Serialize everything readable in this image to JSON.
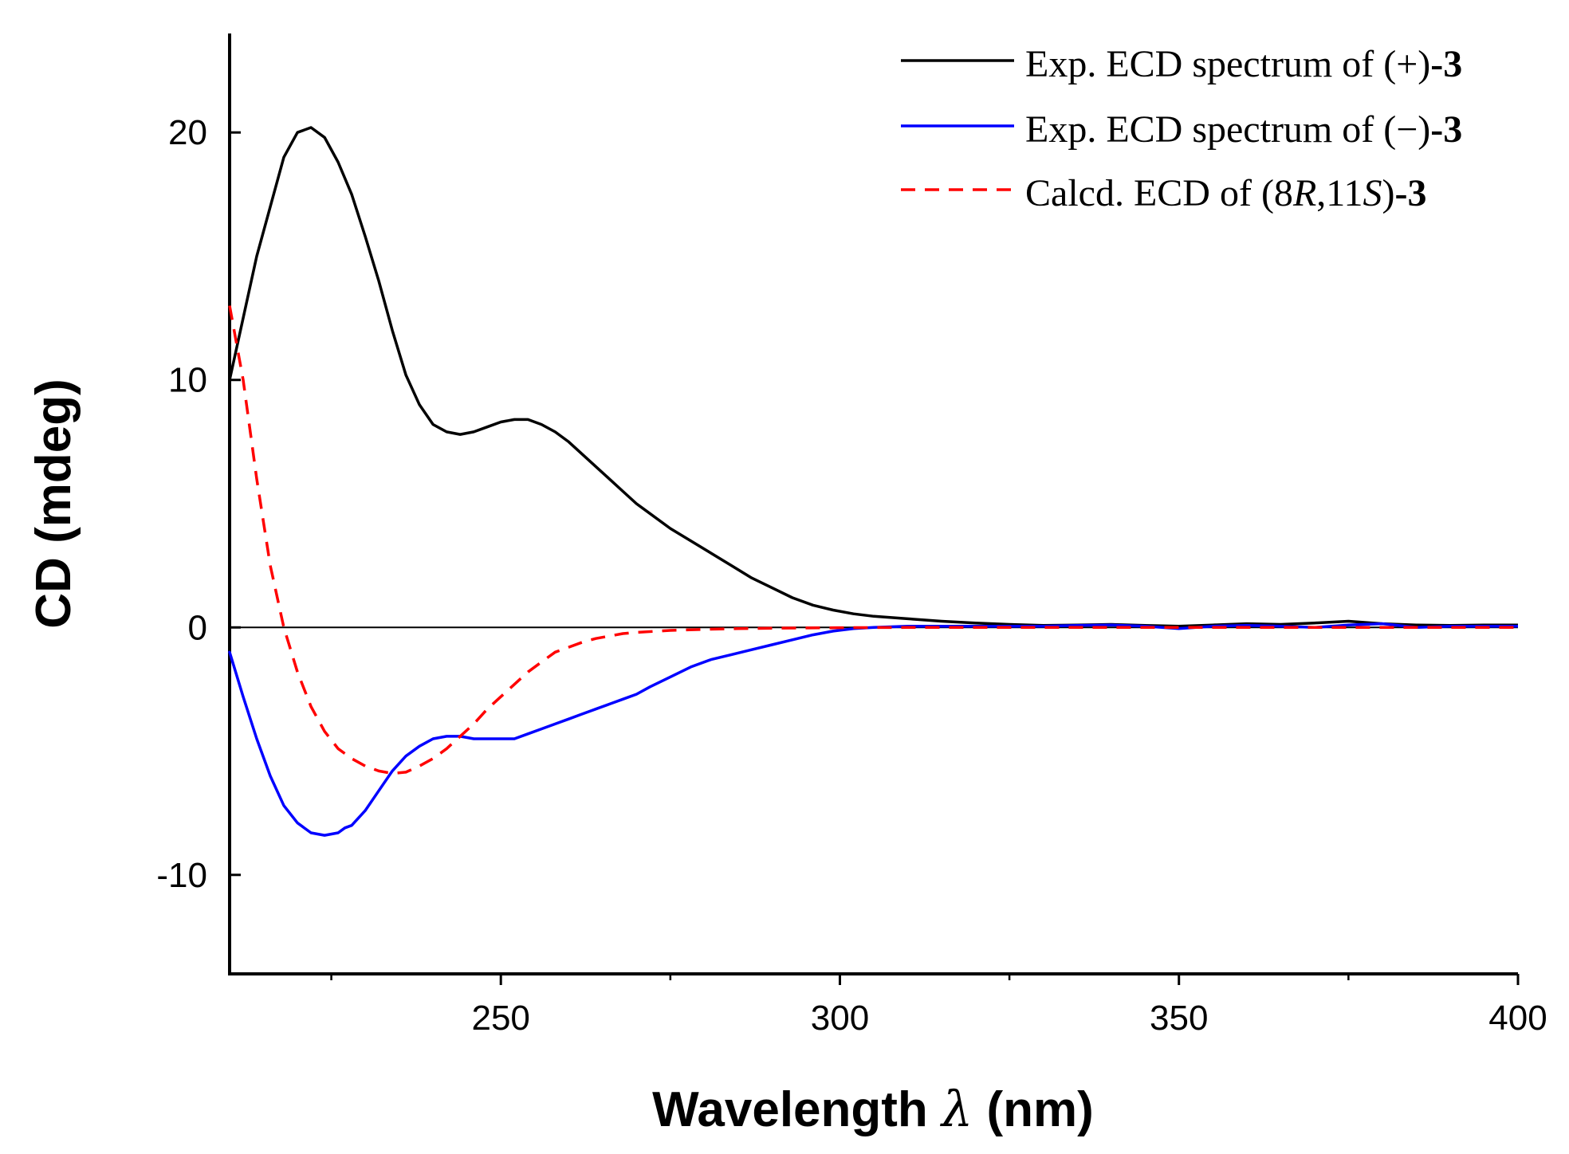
{
  "chart_data": {
    "type": "line",
    "title": "",
    "xlabel": "Wavelength λ (nm)",
    "xlabel_parts": {
      "pre": "Wavelength ",
      "symbol": "λ",
      "post": " (nm)"
    },
    "ylabel": "CD (mdeg)",
    "xlim": [
      210,
      400
    ],
    "ylim": [
      -14,
      24
    ],
    "x_ticks": [
      250,
      300,
      350,
      400
    ],
    "x_tick_labels": [
      "250",
      "300",
      "350",
      "400"
    ],
    "x_minor_ticks": [
      225,
      275,
      325,
      375
    ],
    "y_ticks": [
      -10,
      0,
      10,
      20
    ],
    "y_tick_labels": [
      "-10",
      "0",
      "10",
      "20"
    ],
    "zero_line": true,
    "legend_position": "top-right",
    "series": [
      {
        "name": "Exp. ECD spectrum of (+)-3",
        "label_text": "Exp. ECD spectrum of (+)",
        "label_bold": "-3",
        "color": "#000000",
        "dash": "solid",
        "x": [
          210,
          212,
          214,
          216,
          218,
          220,
          222,
          224,
          226,
          228,
          230,
          232,
          234,
          236,
          238,
          240,
          242,
          244,
          246,
          248,
          250,
          252,
          254,
          256,
          258,
          260,
          262,
          264,
          266,
          268,
          270,
          272,
          275,
          278,
          281,
          284,
          287,
          290,
          293,
          296,
          299,
          302,
          305,
          310,
          315,
          320,
          325,
          330,
          335,
          340,
          345,
          350,
          355,
          360,
          365,
          370,
          375,
          380,
          385,
          390,
          395,
          400
        ],
        "y": [
          10.0,
          12.5,
          15.0,
          17.0,
          19.0,
          20.0,
          20.2,
          19.8,
          18.8,
          17.5,
          15.8,
          14.0,
          12.0,
          10.2,
          9.0,
          8.2,
          7.9,
          7.8,
          7.9,
          8.1,
          8.3,
          8.4,
          8.4,
          8.2,
          7.9,
          7.5,
          7.0,
          6.5,
          6.0,
          5.5,
          5.0,
          4.6,
          4.0,
          3.5,
          3.0,
          2.5,
          2.0,
          1.6,
          1.2,
          0.9,
          0.7,
          0.55,
          0.45,
          0.35,
          0.25,
          0.18,
          0.12,
          0.08,
          0.1,
          0.12,
          0.08,
          0.05,
          0.1,
          0.15,
          0.12,
          0.18,
          0.25,
          0.15,
          0.1,
          0.08,
          0.1,
          0.1
        ]
      },
      {
        "name": "Exp. ECD spectrum of (−)-3",
        "label_text": "Exp. ECD spectrum of (−)",
        "label_bold": "-3",
        "color": "#0000ff",
        "dash": "solid",
        "x": [
          210,
          212,
          214,
          216,
          218,
          220,
          222,
          224,
          226,
          227,
          228,
          230,
          232,
          234,
          236,
          238,
          240,
          242,
          244,
          246,
          248,
          250,
          252,
          254,
          256,
          258,
          260,
          262,
          264,
          266,
          268,
          270,
          272,
          275,
          278,
          281,
          284,
          287,
          290,
          293,
          296,
          299,
          302,
          305,
          310,
          315,
          320,
          325,
          330,
          335,
          340,
          345,
          350,
          355,
          360,
          365,
          370,
          375,
          380,
          385,
          390,
          395,
          400
        ],
        "y": [
          -1.0,
          -2.8,
          -4.5,
          -6.0,
          -7.2,
          -7.9,
          -8.3,
          -8.4,
          -8.3,
          -8.1,
          -8.0,
          -7.4,
          -6.6,
          -5.8,
          -5.2,
          -4.8,
          -4.5,
          -4.4,
          -4.4,
          -4.5,
          -4.5,
          -4.5,
          -4.5,
          -4.3,
          -4.1,
          -3.9,
          -3.7,
          -3.5,
          -3.3,
          -3.1,
          -2.9,
          -2.7,
          -2.4,
          -2.0,
          -1.6,
          -1.3,
          -1.1,
          -0.9,
          -0.7,
          -0.5,
          -0.3,
          -0.15,
          -0.05,
          0.0,
          0.05,
          0.05,
          0.05,
          0.05,
          0.05,
          0.08,
          0.1,
          0.05,
          -0.05,
          0.05,
          0.08,
          0.05,
          0.0,
          0.1,
          0.15,
          0.0,
          0.05,
          0.05,
          0.05
        ]
      },
      {
        "name": "Calcd. ECD of (8R,11S)-3",
        "label_pre": "Calcd. ECD of (8",
        "label_r": "R",
        "label_mid": ",11",
        "label_s": "S",
        "label_post": ")",
        "label_bold": "-3",
        "color": "#ff0000",
        "dash": "dashed",
        "x": [
          210,
          212,
          214,
          216,
          218,
          220,
          222,
          224,
          226,
          228,
          230,
          232,
          234,
          236,
          238,
          240,
          242,
          244,
          246,
          248,
          250,
          252,
          254,
          256,
          258,
          260,
          262,
          264,
          266,
          268,
          270,
          275,
          280,
          285,
          290,
          295,
          300,
          310,
          320,
          330,
          340,
          350,
          360,
          370,
          380,
          390,
          400
        ],
        "y": [
          13.0,
          10.0,
          6.0,
          2.5,
          0.0,
          -1.8,
          -3.2,
          -4.2,
          -4.9,
          -5.3,
          -5.6,
          -5.8,
          -5.9,
          -5.85,
          -5.6,
          -5.3,
          -4.9,
          -4.4,
          -3.9,
          -3.3,
          -2.8,
          -2.3,
          -1.8,
          -1.4,
          -1.0,
          -0.8,
          -0.6,
          -0.45,
          -0.35,
          -0.25,
          -0.2,
          -0.12,
          -0.08,
          -0.05,
          -0.03,
          -0.02,
          -0.01,
          0.0,
          0.0,
          0.0,
          0.0,
          0.0,
          0.0,
          0.0,
          0.0,
          0.0,
          0.0
        ]
      }
    ]
  }
}
